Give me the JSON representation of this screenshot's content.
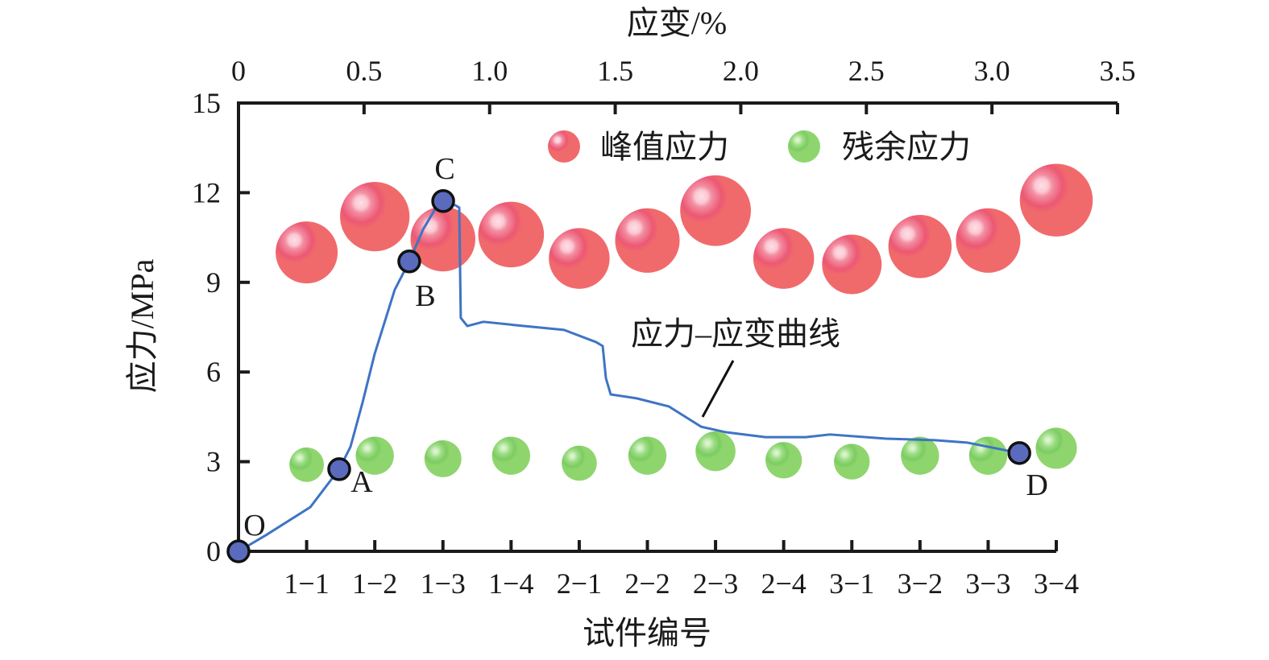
{
  "chart_data": {
    "type": "scatter",
    "title": "",
    "top_axis": {
      "label": "应变/%",
      "range": [
        0,
        3.5
      ],
      "ticks": [
        "0",
        "0.5",
        "1.0",
        "1.5",
        "2.0",
        "2.5",
        "3.0",
        "3.5"
      ]
    },
    "left_axis": {
      "label": "应力/MPa",
      "range": [
        0,
        15
      ],
      "ticks": [
        "0",
        "3",
        "6",
        "9",
        "12",
        "15"
      ]
    },
    "bottom_axis": {
      "label": "试件编号"
    },
    "categories": [
      "1−1",
      "1−2",
      "1−3",
      "1−4",
      "2−1",
      "2−2",
      "2−3",
      "2−4",
      "3−1",
      "3−2",
      "3−3",
      "3−4"
    ],
    "series": [
      {
        "name": "峰值应力",
        "kind": "bubble",
        "color": "#f06a6c",
        "values": [
          10.0,
          11.2,
          10.45,
          10.6,
          9.8,
          10.4,
          11.4,
          9.8,
          9.6,
          10.2,
          10.4,
          11.75
        ]
      },
      {
        "name": "残余应力",
        "kind": "bubble",
        "color": "#8fd56e",
        "values": [
          2.9,
          3.2,
          3.1,
          3.2,
          2.95,
          3.2,
          3.35,
          3.05,
          3.0,
          3.2,
          3.2,
          3.45
        ]
      }
    ],
    "curve": {
      "name": "应力–应变曲线",
      "color": "#3e74c4",
      "strain": [
        0,
        0.109,
        0.286,
        0.401,
        0.446,
        0.494,
        0.542,
        0.622,
        0.68,
        0.735,
        0.783,
        0.815,
        0.863,
        0.879,
        0.885,
        0.911,
        0.975,
        1.136,
        1.296,
        1.424,
        1.45,
        1.463,
        1.482,
        1.585,
        1.713,
        1.842,
        1.938,
        2.098,
        2.259,
        2.355,
        2.579,
        2.772,
        2.9,
        3.109
      ],
      "stress": [
        0,
        0.54,
        1.48,
        2.75,
        3.5,
        4.98,
        6.6,
        8.75,
        9.7,
        10.77,
        11.45,
        11.72,
        11.58,
        11.5,
        7.81,
        7.54,
        7.68,
        7.54,
        7.41,
        7.0,
        6.87,
        5.79,
        5.25,
        5.12,
        4.85,
        4.17,
        3.99,
        3.82,
        3.82,
        3.91,
        3.77,
        3.72,
        3.64,
        3.29
      ]
    },
    "key_points": [
      {
        "label": "O",
        "strain": 0,
        "stress": 0
      },
      {
        "label": "A",
        "strain": 0.401,
        "stress": 2.75
      },
      {
        "label": "B",
        "strain": 0.68,
        "stress": 9.7
      },
      {
        "label": "C",
        "strain": 0.815,
        "stress": 11.72
      },
      {
        "label": "D",
        "strain": 3.109,
        "stress": 3.29
      }
    ],
    "legend": {
      "placement": "top-right",
      "entries": [
        "峰值应力",
        "残余应力"
      ]
    },
    "grid": false
  }
}
